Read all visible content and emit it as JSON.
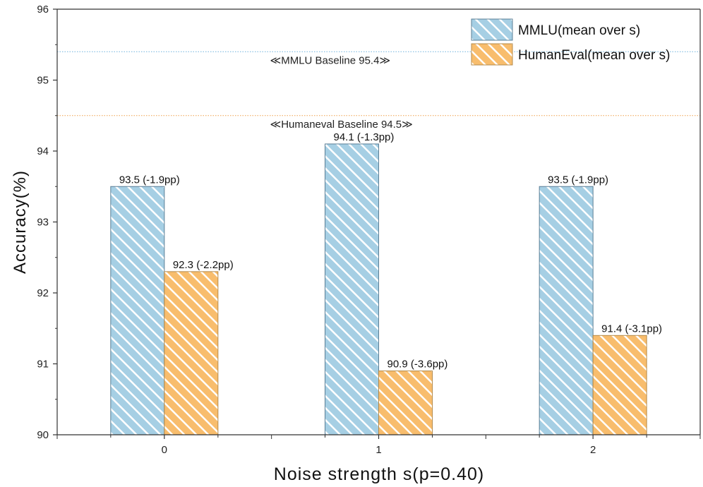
{
  "chart_data": {
    "type": "bar",
    "xlabel": "Noise strength s(p=0.40)",
    "ylabel": "Accuracy(%)",
    "ylim": [
      90,
      96
    ],
    "yticks": [
      90,
      91,
      92,
      93,
      94,
      95,
      96
    ],
    "categories": [
      "0",
      "1",
      "2"
    ],
    "grid": false,
    "legend_position": "top-right",
    "series": [
      {
        "name": "MMLU(mean over s)",
        "color": "#a6cfe4",
        "edge_color": "#5b7f96",
        "hatch": "diagonal-white",
        "values": [
          93.5,
          94.1,
          93.5
        ],
        "labels": [
          "93.5 (-1.9pp)",
          "94.1 (-1.3pp)",
          "93.5 (-1.9pp)"
        ]
      },
      {
        "name": "HumanEval(mean over s)",
        "color": "#f8bd6d",
        "edge_color": "#b58a4a",
        "hatch": "diagonal-white",
        "values": [
          92.3,
          90.9,
          91.4
        ],
        "labels": [
          "92.3 (-2.2pp)",
          "90.9 (-3.6pp)",
          "91.4 (-3.1pp)"
        ]
      }
    ],
    "reference_lines": [
      {
        "label": "≪MMLU Baseline 95.4≫",
        "value": 95.4,
        "color": "#6fb3de",
        "style": "dotted"
      },
      {
        "label": "≪Humaneval Baseline 94.5≫",
        "value": 94.5,
        "color": "#f0a04b",
        "style": "dotted"
      }
    ]
  }
}
